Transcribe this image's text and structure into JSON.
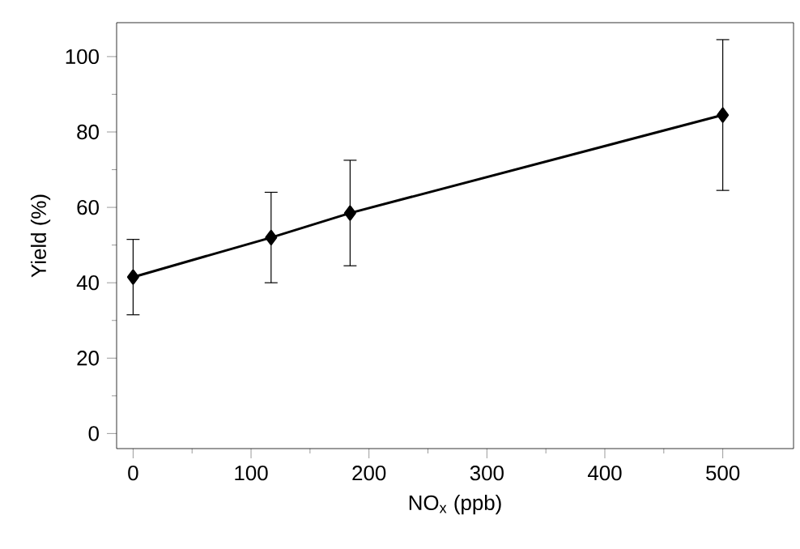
{
  "chart_data": {
    "type": "line",
    "xlabel": "NO$_{x}$ (ppb)",
    "ylabel": "Yield (%)",
    "x": [
      0,
      117,
      184,
      500
    ],
    "series": [
      {
        "color": "#000000",
        "values": [
          41.5,
          52,
          58.5,
          84.5
        ],
        "errors": [
          10,
          12,
          14,
          20
        ]
      }
    ],
    "marker": "diamond",
    "line_style": "solid",
    "grid": false,
    "xlim": [
      -14,
      560
    ],
    "ylim": [
      -4,
      109
    ],
    "xticks": [
      0,
      100,
      200,
      300,
      400,
      500
    ],
    "yticks": [
      0,
      20,
      40,
      60,
      80,
      100
    ]
  }
}
